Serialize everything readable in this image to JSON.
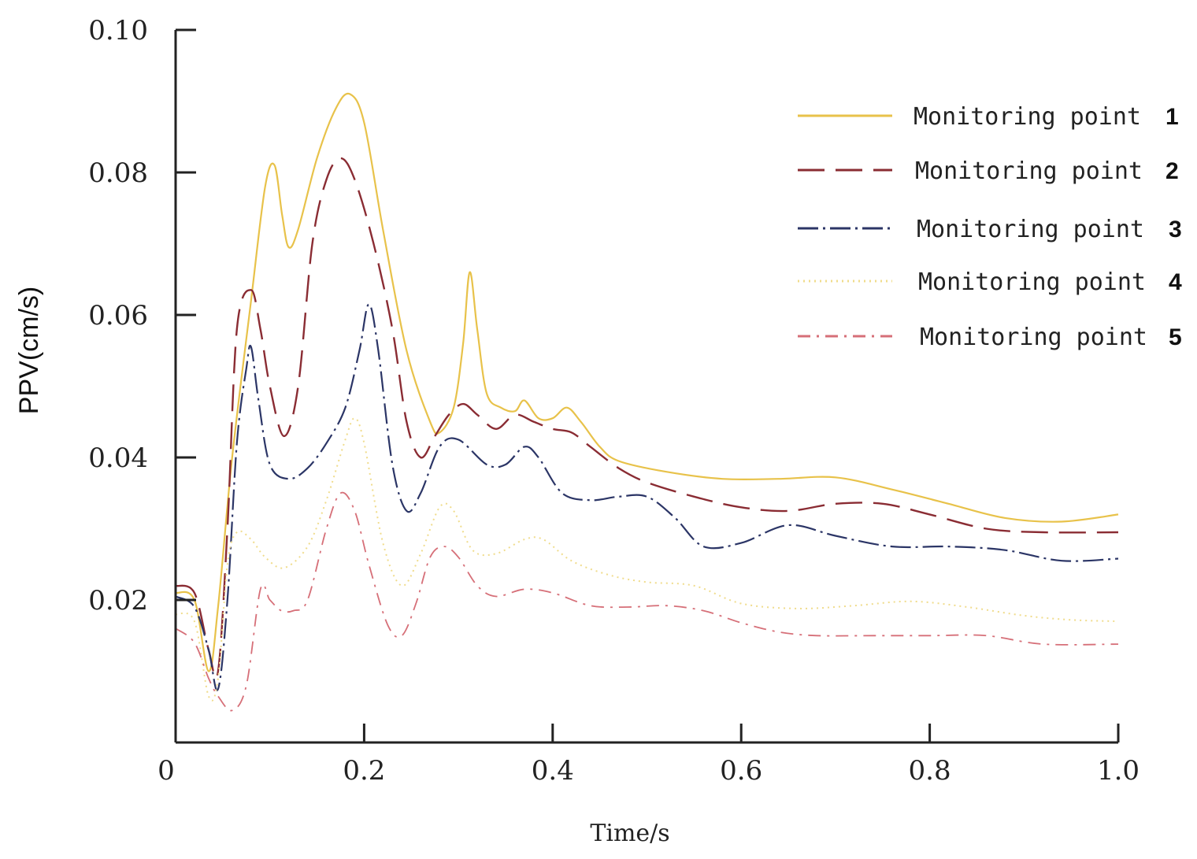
{
  "chart_data": {
    "type": "line",
    "title": "",
    "xlabel": "Time/s",
    "ylabel": "PPV(cm/s)",
    "xlim": [
      0,
      1.0
    ],
    "ylim": [
      0,
      0.1
    ],
    "x_ticks": [
      {
        "value": 0,
        "label": "0"
      },
      {
        "value": 0.2,
        "label": "0.2"
      },
      {
        "value": 0.4,
        "label": "0.4"
      },
      {
        "value": 0.6,
        "label": "0.6"
      },
      {
        "value": 0.8,
        "label": "0.8"
      },
      {
        "value": 1.0,
        "label": "1.0"
      }
    ],
    "y_ticks": [
      {
        "value": 0.02,
        "label": "0.02"
      },
      {
        "value": 0.04,
        "label": "0.04"
      },
      {
        "value": 0.06,
        "label": "0.06"
      },
      {
        "value": 0.08,
        "label": "0.08"
      },
      {
        "value": 0.1,
        "label": "0.10"
      }
    ],
    "legend_position": "top-right",
    "grid": false,
    "series": [
      {
        "name": "Monitoring point",
        "number": "1",
        "color": "#e8c24a",
        "dash": "solid",
        "points": [
          [
            0,
            0.021
          ],
          [
            0.02,
            0.02
          ],
          [
            0.035,
            0.01
          ],
          [
            0.045,
            0.019
          ],
          [
            0.06,
            0.04
          ],
          [
            0.08,
            0.062
          ],
          [
            0.095,
            0.078
          ],
          [
            0.105,
            0.081
          ],
          [
            0.113,
            0.074
          ],
          [
            0.12,
            0.0695
          ],
          [
            0.13,
            0.072
          ],
          [
            0.15,
            0.082
          ],
          [
            0.17,
            0.089
          ],
          [
            0.185,
            0.091
          ],
          [
            0.2,
            0.087
          ],
          [
            0.22,
            0.072
          ],
          [
            0.245,
            0.055
          ],
          [
            0.27,
            0.045
          ],
          [
            0.28,
            0.0435
          ],
          [
            0.295,
            0.047
          ],
          [
            0.305,
            0.056
          ],
          [
            0.312,
            0.066
          ],
          [
            0.32,
            0.058
          ],
          [
            0.33,
            0.049
          ],
          [
            0.345,
            0.047
          ],
          [
            0.36,
            0.0465
          ],
          [
            0.37,
            0.048
          ],
          [
            0.385,
            0.0455
          ],
          [
            0.4,
            0.0455
          ],
          [
            0.415,
            0.047
          ],
          [
            0.43,
            0.045
          ],
          [
            0.45,
            0.0415
          ],
          [
            0.47,
            0.0395
          ],
          [
            0.52,
            0.038
          ],
          [
            0.58,
            0.037
          ],
          [
            0.64,
            0.037
          ],
          [
            0.7,
            0.0372
          ],
          [
            0.76,
            0.0355
          ],
          [
            0.82,
            0.0335
          ],
          [
            0.88,
            0.0315
          ],
          [
            0.94,
            0.031
          ],
          [
            1.0,
            0.032
          ]
        ]
      },
      {
        "name": "Monitoring point",
        "number": "2",
        "color": "#8a2c33",
        "dash": "long-dash",
        "points": [
          [
            0,
            0.022
          ],
          [
            0.02,
            0.021
          ],
          [
            0.035,
            0.013
          ],
          [
            0.045,
            0.01
          ],
          [
            0.055,
            0.03
          ],
          [
            0.065,
            0.058
          ],
          [
            0.08,
            0.0635
          ],
          [
            0.09,
            0.058
          ],
          [
            0.1,
            0.05
          ],
          [
            0.115,
            0.043
          ],
          [
            0.13,
            0.05
          ],
          [
            0.145,
            0.07
          ],
          [
            0.16,
            0.079
          ],
          [
            0.175,
            0.082
          ],
          [
            0.19,
            0.079
          ],
          [
            0.21,
            0.07
          ],
          [
            0.23,
            0.058
          ],
          [
            0.245,
            0.045
          ],
          [
            0.26,
            0.04
          ],
          [
            0.275,
            0.043
          ],
          [
            0.29,
            0.046
          ],
          [
            0.305,
            0.0475
          ],
          [
            0.32,
            0.046
          ],
          [
            0.34,
            0.044
          ],
          [
            0.36,
            0.046
          ],
          [
            0.38,
            0.045
          ],
          [
            0.4,
            0.044
          ],
          [
            0.42,
            0.0435
          ],
          [
            0.44,
            0.0415
          ],
          [
            0.47,
            0.0385
          ],
          [
            0.5,
            0.0365
          ],
          [
            0.55,
            0.0345
          ],
          [
            0.6,
            0.033
          ],
          [
            0.65,
            0.0325
          ],
          [
            0.7,
            0.0335
          ],
          [
            0.75,
            0.0335
          ],
          [
            0.8,
            0.032
          ],
          [
            0.86,
            0.03
          ],
          [
            0.92,
            0.0295
          ],
          [
            1.0,
            0.0295
          ]
        ]
      },
      {
        "name": "Monitoring point",
        "number": "3",
        "color": "#2b3566",
        "dash": "dash-dot",
        "points": [
          [
            0,
            0.0205
          ],
          [
            0.02,
            0.019
          ],
          [
            0.035,
            0.013
          ],
          [
            0.045,
            0.0075
          ],
          [
            0.055,
            0.02
          ],
          [
            0.065,
            0.042
          ],
          [
            0.075,
            0.0525
          ],
          [
            0.08,
            0.0555
          ],
          [
            0.088,
            0.048
          ],
          [
            0.1,
            0.039
          ],
          [
            0.12,
            0.037
          ],
          [
            0.14,
            0.0385
          ],
          [
            0.16,
            0.042
          ],
          [
            0.18,
            0.047
          ],
          [
            0.195,
            0.055
          ],
          [
            0.205,
            0.0615
          ],
          [
            0.215,
            0.055
          ],
          [
            0.23,
            0.039
          ],
          [
            0.245,
            0.0325
          ],
          [
            0.26,
            0.035
          ],
          [
            0.28,
            0.0415
          ],
          [
            0.3,
            0.0425
          ],
          [
            0.33,
            0.039
          ],
          [
            0.35,
            0.039
          ],
          [
            0.37,
            0.0415
          ],
          [
            0.385,
            0.04
          ],
          [
            0.41,
            0.035
          ],
          [
            0.44,
            0.034
          ],
          [
            0.47,
            0.0345
          ],
          [
            0.5,
            0.0345
          ],
          [
            0.53,
            0.0315
          ],
          [
            0.56,
            0.0275
          ],
          [
            0.6,
            0.028
          ],
          [
            0.65,
            0.0305
          ],
          [
            0.7,
            0.029
          ],
          [
            0.76,
            0.0275
          ],
          [
            0.82,
            0.0275
          ],
          [
            0.88,
            0.027
          ],
          [
            0.94,
            0.0255
          ],
          [
            1.0,
            0.0258
          ]
        ]
      },
      {
        "name": "Monitoring point",
        "number": "4",
        "color": "#f0dc8c",
        "dash": "dotted",
        "points": [
          [
            0,
            0.018
          ],
          [
            0.02,
            0.017
          ],
          [
            0.035,
            0.0065
          ],
          [
            0.045,
            0.009
          ],
          [
            0.055,
            0.025
          ],
          [
            0.065,
            0.0295
          ],
          [
            0.08,
            0.0285
          ],
          [
            0.095,
            0.026
          ],
          [
            0.115,
            0.0245
          ],
          [
            0.14,
            0.0275
          ],
          [
            0.16,
            0.034
          ],
          [
            0.18,
            0.0425
          ],
          [
            0.19,
            0.0455
          ],
          [
            0.2,
            0.042
          ],
          [
            0.22,
            0.028
          ],
          [
            0.24,
            0.022
          ],
          [
            0.26,
            0.0265
          ],
          [
            0.28,
            0.033
          ],
          [
            0.295,
            0.0325
          ],
          [
            0.315,
            0.027
          ],
          [
            0.34,
            0.0265
          ],
          [
            0.37,
            0.0285
          ],
          [
            0.39,
            0.0285
          ],
          [
            0.42,
            0.0255
          ],
          [
            0.46,
            0.0235
          ],
          [
            0.5,
            0.0225
          ],
          [
            0.55,
            0.022
          ],
          [
            0.6,
            0.0195
          ],
          [
            0.66,
            0.0188
          ],
          [
            0.72,
            0.0192
          ],
          [
            0.78,
            0.0198
          ],
          [
            0.84,
            0.019
          ],
          [
            0.9,
            0.0178
          ],
          [
            0.95,
            0.0172
          ],
          [
            1.0,
            0.017
          ]
        ]
      },
      {
        "name": "Monitoring point",
        "number": "5",
        "color": "#d66f78",
        "dash": "dash-dot-thin",
        "points": [
          [
            0,
            0.016
          ],
          [
            0.02,
            0.014
          ],
          [
            0.035,
            0.009
          ],
          [
            0.045,
            0.0065
          ],
          [
            0.06,
            0.0045
          ],
          [
            0.075,
            0.008
          ],
          [
            0.09,
            0.0215
          ],
          [
            0.1,
            0.02
          ],
          [
            0.112,
            0.0185
          ],
          [
            0.125,
            0.0185
          ],
          [
            0.14,
            0.02
          ],
          [
            0.16,
            0.03
          ],
          [
            0.175,
            0.035
          ],
          [
            0.19,
            0.0325
          ],
          [
            0.205,
            0.025
          ],
          [
            0.225,
            0.0165
          ],
          [
            0.24,
            0.015
          ],
          [
            0.255,
            0.0195
          ],
          [
            0.27,
            0.026
          ],
          [
            0.285,
            0.0275
          ],
          [
            0.3,
            0.026
          ],
          [
            0.32,
            0.022
          ],
          [
            0.34,
            0.0205
          ],
          [
            0.37,
            0.0215
          ],
          [
            0.4,
            0.021
          ],
          [
            0.44,
            0.0192
          ],
          [
            0.48,
            0.019
          ],
          [
            0.52,
            0.0192
          ],
          [
            0.56,
            0.0185
          ],
          [
            0.6,
            0.0168
          ],
          [
            0.64,
            0.0155
          ],
          [
            0.68,
            0.015
          ],
          [
            0.74,
            0.015
          ],
          [
            0.8,
            0.015
          ],
          [
            0.86,
            0.015
          ],
          [
            0.92,
            0.0138
          ],
          [
            1.0,
            0.0138
          ]
        ]
      }
    ]
  }
}
